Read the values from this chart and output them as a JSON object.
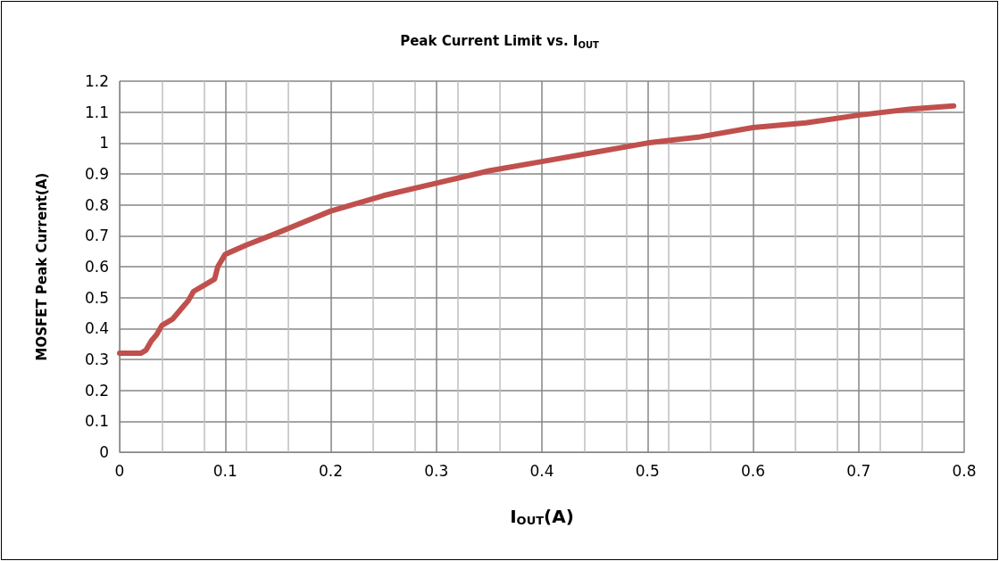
{
  "chart_data": {
    "type": "line",
    "title": "Peak Current Limit vs. I$_{OUT}$",
    "xlabel": "I$_{OUT}$(A)",
    "ylabel": "MOSFET Peak Current(A)",
    "x": [
      0,
      0.02,
      0.025,
      0.03,
      0.035,
      0.04,
      0.05,
      0.06,
      0.065,
      0.07,
      0.08,
      0.09,
      0.093,
      0.1,
      0.12,
      0.15,
      0.2,
      0.25,
      0.3,
      0.35,
      0.4,
      0.45,
      0.5,
      0.55,
      0.6,
      0.65,
      0.7,
      0.75,
      0.79
    ],
    "series": [
      {
        "color": "#c0504d",
        "values": [
          0.32,
          0.32,
          0.33,
          0.36,
          0.38,
          0.41,
          0.43,
          0.47,
          0.49,
          0.52,
          0.54,
          0.56,
          0.6,
          0.64,
          0.67,
          0.71,
          0.78,
          0.83,
          0.87,
          0.91,
          0.94,
          0.97,
          1.0,
          1.02,
          1.05,
          1.065,
          1.09,
          1.11,
          1.12
        ]
      }
    ],
    "xlim": [
      0,
      0.8
    ],
    "xticks": [
      0,
      0.1,
      0.2,
      0.3,
      0.4,
      0.5,
      0.6,
      0.7,
      0.8
    ],
    "ylim": [
      0,
      1.2
    ],
    "yticks": [
      0,
      0.1,
      0.2,
      0.3,
      0.4,
      0.5,
      0.6,
      0.7,
      0.8,
      0.9,
      1,
      1.1,
      1.2
    ],
    "grid": true,
    "marker": "none",
    "line_style": "solid"
  }
}
